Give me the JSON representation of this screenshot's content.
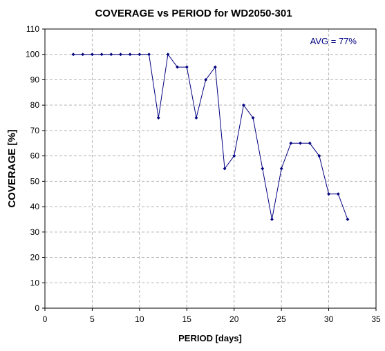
{
  "chart_data": {
    "type": "line",
    "title": "COVERAGE vs PERIOD for WD2050-301",
    "xlabel": "PERIOD [days]",
    "ylabel": "COVERAGE [%]",
    "xlim": [
      0,
      35
    ],
    "ylim": [
      0,
      110
    ],
    "xticks": [
      0,
      5,
      10,
      15,
      20,
      25,
      30,
      35
    ],
    "yticks": [
      0,
      10,
      20,
      30,
      40,
      50,
      60,
      70,
      80,
      90,
      100,
      110
    ],
    "grid": true,
    "annotation": "AVG = 77%",
    "annotation_placement": "top-right",
    "series": [
      {
        "x": [
          3,
          4,
          5,
          6,
          7,
          8,
          9,
          10,
          11,
          12,
          13,
          14,
          15,
          16,
          17,
          18,
          19,
          20,
          21,
          22,
          23,
          24,
          25,
          26,
          27,
          28,
          29,
          30,
          31,
          32
        ],
        "y": [
          100,
          100,
          100,
          100,
          100,
          100,
          100,
          100,
          100,
          75,
          100,
          95,
          95,
          75,
          90,
          95,
          55,
          60,
          80,
          75,
          55,
          35,
          55,
          65,
          65,
          65,
          60,
          45,
          45,
          35
        ],
        "color": "#000080"
      }
    ],
    "colors": {
      "line": "#000080",
      "grid": "#b3b3b3",
      "axis": "#000000",
      "annotation": "#000080"
    }
  }
}
